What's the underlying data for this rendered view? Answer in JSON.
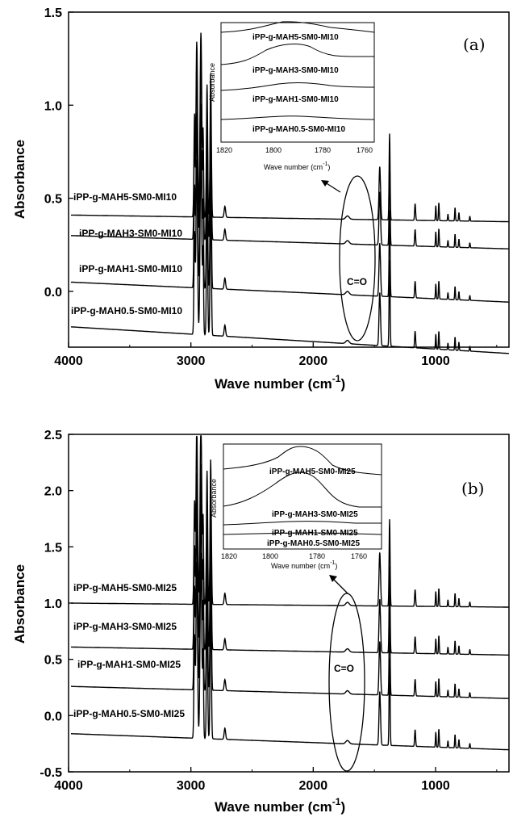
{
  "chart_data": [
    {
      "type": "line",
      "panel_label": "(a)",
      "xlabel": "Wave number (cm",
      "xlabel_sup": "-1",
      "xlabel_close": ")",
      "ylabel": "Absorbance",
      "xlim": [
        4000,
        400
      ],
      "ylim": [
        -0.3,
        1.5
      ],
      "xticks": [
        "4000",
        "3000",
        "2000",
        "1000"
      ],
      "yticks": [
        "0.0",
        "0.5",
        "1.0",
        "1.5"
      ],
      "annotation": "C=O",
      "series": [
        {
          "name": "iPP-g-MAH5-SM0-MI10",
          "baseline": 0.41,
          "peak_scale": 1.0
        },
        {
          "name": "iPP-g-MAH3-SM0-MI10",
          "baseline": 0.3,
          "peak_scale": 1.0
        },
        {
          "name": "iPP-g-MAH1-SM0-MI10",
          "baseline": 0.05,
          "peak_scale": 1.0
        },
        {
          "name": "iPP-g-MAH0.5-SM0-MI10",
          "baseline": -0.19,
          "peak_scale": 1.0
        }
      ],
      "inset": {
        "ylabel": "Absorbance",
        "xlabel": "Wave number (cm",
        "xlabel_sup": "-1",
        "xlabel_close": ")",
        "xlim": [
          1820,
          1740
        ],
        "xticks": [
          "1820",
          "1800",
          "1780",
          "1760"
        ],
        "series": [
          {
            "name": "iPP-g-MAH5-SM0-MI10"
          },
          {
            "name": "iPP-g-MAH3-SM0-MI10"
          },
          {
            "name": "iPP-g-MAH1-SM0-MI10"
          },
          {
            "name": "iPP-g-MAH0.5-SM0-MI10"
          }
        ]
      }
    },
    {
      "type": "line",
      "panel_label": "(b)",
      "xlabel": "Wave number (cm",
      "xlabel_sup": "-1",
      "xlabel_close": ")",
      "ylabel": "Absorbance",
      "xlim": [
        4000,
        400
      ],
      "ylim": [
        -0.5,
        2.5
      ],
      "xticks": [
        "4000",
        "3000",
        "2000",
        "1000"
      ],
      "yticks": [
        "-0.5",
        "0.0",
        "0.5",
        "1.0",
        "1.5",
        "2.0",
        "2.5"
      ],
      "annotation": "C=O",
      "series": [
        {
          "name": "iPP-g-MAH5-SM0-MI25",
          "baseline": 1.0,
          "peak_scale": 1.0
        },
        {
          "name": "iPP-g-MAH3-SM0-MI25",
          "baseline": 0.61,
          "peak_scale": 1.0
        },
        {
          "name": "iPP-g-MAH1-SM0-MI25",
          "baseline": 0.26,
          "peak_scale": 1.0
        },
        {
          "name": "iPP-g-MAH0.5-SM0-MI25",
          "baseline": -0.16,
          "peak_scale": 1.0
        }
      ],
      "inset": {
        "ylabel": "Absorbance",
        "xlabel": "Wave number (cm",
        "xlabel_sup": "-1",
        "xlabel_close": ")",
        "xlim": [
          1820,
          1740
        ],
        "xticks": [
          "1820",
          "1800",
          "1780",
          "1760"
        ],
        "series": [
          {
            "name": "iPP-g-MAH5-SM0-MI25"
          },
          {
            "name": "iPP-g-MAH3-SM0-MI25"
          },
          {
            "name": "iPP-g-MAH1-SM0-MI25"
          },
          {
            "name": "iPP-g-MAH0.5-SM0-MI25"
          }
        ]
      }
    }
  ]
}
